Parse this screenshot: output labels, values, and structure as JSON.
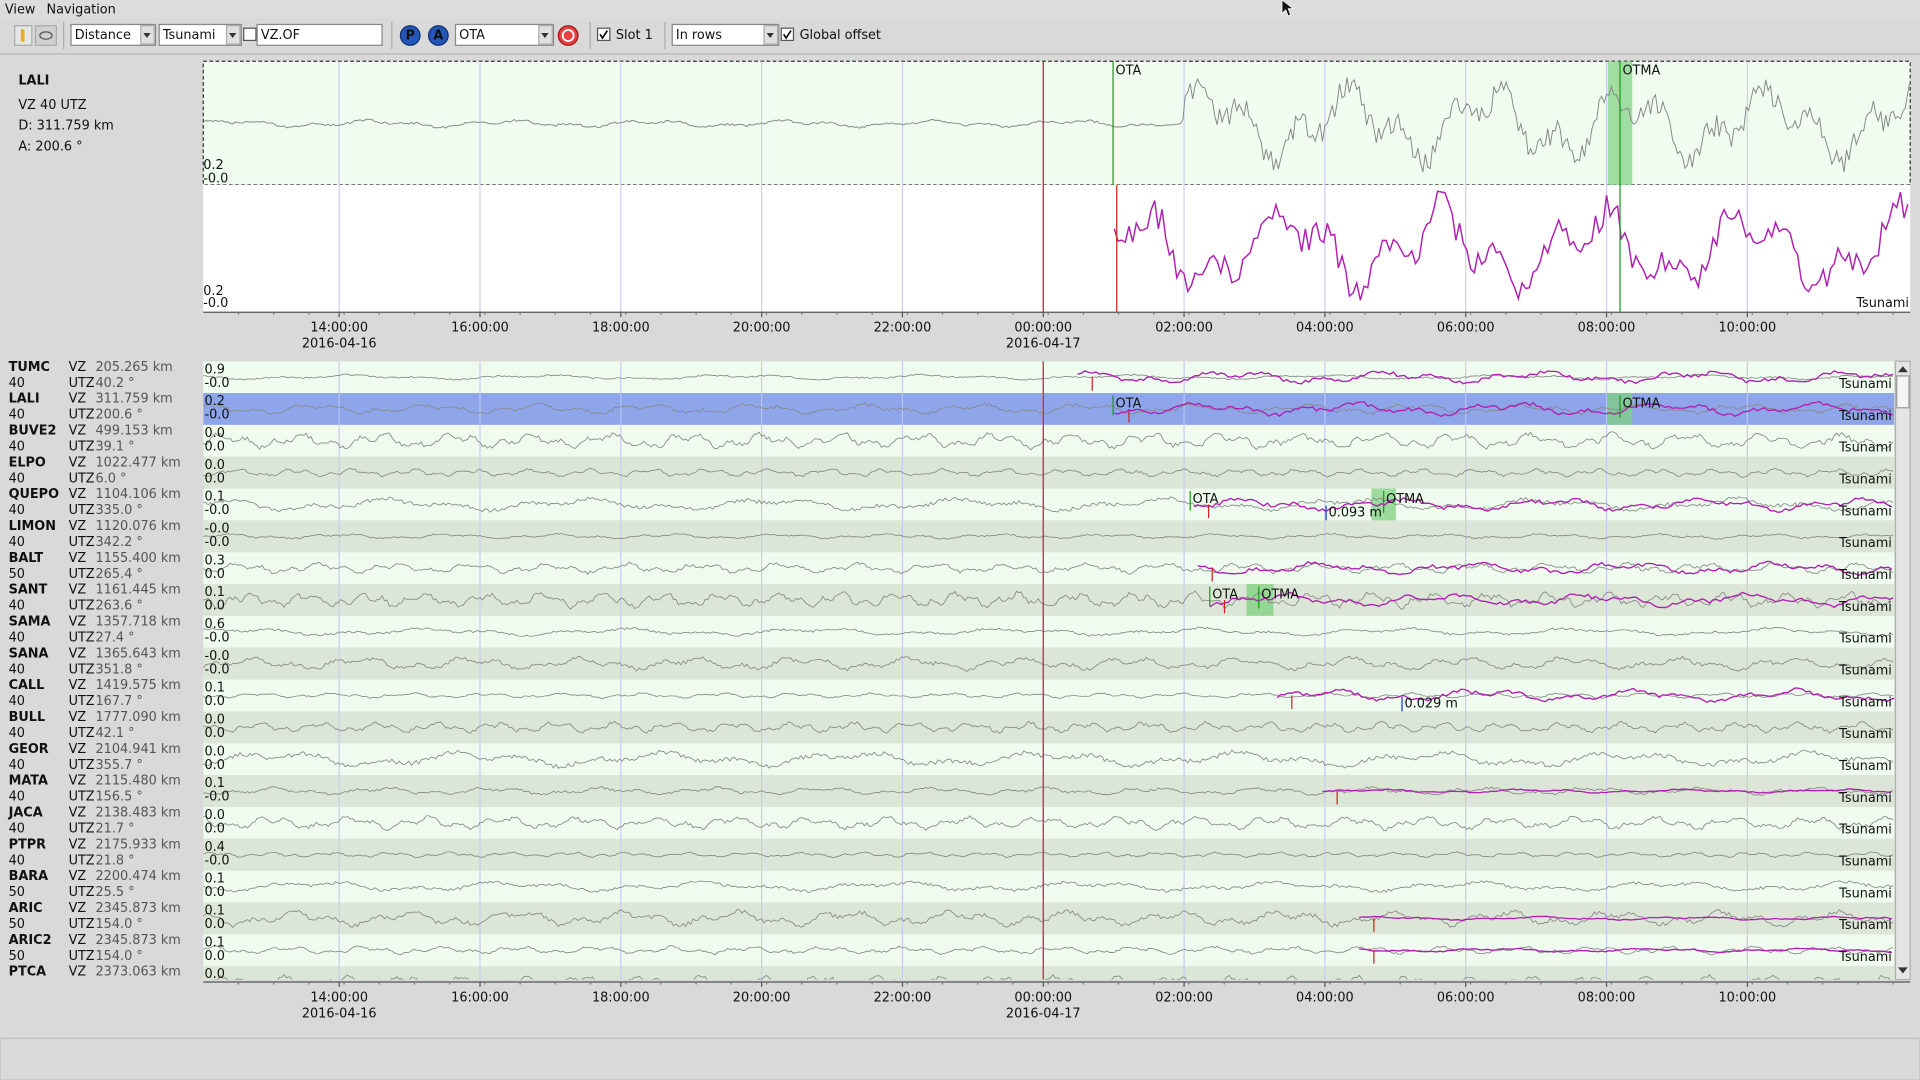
{
  "menu": [
    "View",
    "Navigation"
  ],
  "toolbar": {
    "sort": "Distance",
    "filter": "Tsunami",
    "stream": "VZ.OF",
    "pick_buttons": [
      "P",
      "A"
    ],
    "phase": "OTA",
    "slot": "Slot 1",
    "layout": "In rows",
    "offset": "Global offset"
  },
  "detail": {
    "station": "LALI",
    "stream": "VZ 40 UTZ",
    "distance": "D: 311.759 km",
    "azimuth": "A: 200.6 °",
    "raw_amp": [
      "0.2",
      "-0.0"
    ],
    "filtered_amp": [
      "0.2",
      "-0.0"
    ],
    "picks": [
      "OTA",
      "OTMA"
    ],
    "filter": "Tsunami"
  },
  "time_axis": {
    "ticks": [
      "14:00:00",
      "16:00:00",
      "18:00:00",
      "20:00:00",
      "22:00:00",
      "00:00:00",
      "02:00:00",
      "04:00:00",
      "06:00:00",
      "08:00:00",
      "10:00:00"
    ],
    "dates": [
      "2016-04-16",
      "2016-04-17"
    ]
  },
  "rows": [
    {
      "station": "TUMC",
      "channel": "VZ",
      "distance": "205.265 km",
      "location": "40",
      "network": "UTZ",
      "azimuth": "40.2 °",
      "amp": [
        "0.9",
        "-0.0"
      ],
      "filter": "Tsunami"
    },
    {
      "station": "LALI",
      "channel": "VZ",
      "distance": "311.759 km",
      "location": "40",
      "network": "UTZ",
      "azimuth": "200.6 °",
      "amp": [
        "0.2",
        "-0.0"
      ],
      "filter": "Tsunami",
      "picks": [
        "OTA",
        "OTMA"
      ]
    },
    {
      "station": "BUVE2",
      "channel": "VZ",
      "distance": "499.153 km",
      "location": "40",
      "network": "UTZ",
      "azimuth": "39.1 °",
      "amp": [
        "0.0",
        "0.0"
      ],
      "filter": "Tsunami"
    },
    {
      "station": "ELPO",
      "channel": "VZ",
      "distance": "1022.477 km",
      "location": "40",
      "network": "UTZ",
      "azimuth": "6.0 °",
      "amp": [
        "0.0",
        "0.0"
      ],
      "filter": "Tsunami"
    },
    {
      "station": "QUEPO",
      "channel": "VZ",
      "distance": "1104.106 km",
      "location": "40",
      "network": "UTZ",
      "azimuth": "335.0 °",
      "amp": [
        "0.1",
        "-0.0"
      ],
      "filter": "Tsunami",
      "picks": [
        "OTA",
        "OTMA"
      ],
      "amplitude": "0.093 m"
    },
    {
      "station": "LIMON",
      "channel": "VZ",
      "distance": "1120.076 km",
      "location": "40",
      "network": "UTZ",
      "azimuth": "342.2 °",
      "amp": [
        "-0.0",
        "-0.0"
      ],
      "filter": "Tsunami"
    },
    {
      "station": "BALT",
      "channel": "VZ",
      "distance": "1155.400 km",
      "location": "50",
      "network": "UTZ",
      "azimuth": "265.4 °",
      "amp": [
        "0.3",
        "0.0"
      ],
      "filter": "Tsunami"
    },
    {
      "station": "SANT",
      "channel": "VZ",
      "distance": "1161.445 km",
      "location": "40",
      "network": "UTZ",
      "azimuth": "263.6 °",
      "amp": [
        "0.1",
        "0.0"
      ],
      "filter": "Tsunami",
      "picks": [
        "OTA",
        "OTMA"
      ]
    },
    {
      "station": "SAMA",
      "channel": "VZ",
      "distance": "1357.718 km",
      "location": "40",
      "network": "UTZ",
      "azimuth": "27.4 °",
      "amp": [
        "0.6",
        "-0.0"
      ],
      "filter": "Tsunami"
    },
    {
      "station": "SANA",
      "channel": "VZ",
      "distance": "1365.643 km",
      "location": "40",
      "network": "UTZ",
      "azimuth": "351.8 °",
      "amp": [
        "-0.0",
        "-0.0"
      ],
      "filter": "Tsunami"
    },
    {
      "station": "CALL",
      "channel": "VZ",
      "distance": "1419.575 km",
      "location": "40",
      "network": "UTZ",
      "azimuth": "167.7 °",
      "amp": [
        "0.1",
        "0.0"
      ],
      "filter": "Tsunami",
      "amplitude": "0.029 m"
    },
    {
      "station": "BULL",
      "channel": "VZ",
      "distance": "1777.090 km",
      "location": "40",
      "network": "UTZ",
      "azimuth": "42.1 °",
      "amp": [
        "0.0",
        "0.0"
      ],
      "filter": "Tsunami"
    },
    {
      "station": "GEOR",
      "channel": "VZ",
      "distance": "2104.941 km",
      "location": "40",
      "network": "UTZ",
      "azimuth": "355.7 °",
      "amp": [
        "0.0",
        "0.0"
      ],
      "filter": "Tsunami"
    },
    {
      "station": "MATA",
      "channel": "VZ",
      "distance": "2115.480 km",
      "location": "40",
      "network": "UTZ",
      "azimuth": "156.5 °",
      "amp": [
        "0.1",
        "-0.0"
      ],
      "filter": "Tsunami"
    },
    {
      "station": "JACA",
      "channel": "VZ",
      "distance": "2138.483 km",
      "location": "40",
      "network": "UTZ",
      "azimuth": "21.7 °",
      "amp": [
        "0.0",
        "0.0"
      ],
      "filter": "Tsunami"
    },
    {
      "station": "PTPR",
      "channel": "VZ",
      "distance": "2175.933 km",
      "location": "40",
      "network": "UTZ",
      "azimuth": "21.8 °",
      "amp": [
        "0.4",
        "-0.0"
      ],
      "filter": "Tsunami"
    },
    {
      "station": "BARA",
      "channel": "VZ",
      "distance": "2200.474 km",
      "location": "50",
      "network": "UTZ",
      "azimuth": "25.5 °",
      "amp": [
        "0.1",
        "0.0"
      ],
      "filter": "Tsunami"
    },
    {
      "station": "ARIC",
      "channel": "VZ",
      "distance": "2345.873 km",
      "location": "50",
      "network": "UTZ",
      "azimuth": "154.0 °",
      "amp": [
        "0.1",
        "0.0"
      ],
      "filter": "Tsunami"
    },
    {
      "station": "ARIC2",
      "channel": "VZ",
      "distance": "2345.873 km",
      "location": "50",
      "network": "UTZ",
      "azimuth": "154.0 °",
      "amp": [
        "0.1",
        "0.0"
      ],
      "filter": "Tsunami"
    },
    {
      "station": "PTCA",
      "channel": "VZ",
      "distance": "2373.063 km",
      "amp": [
        "0.0"
      ]
    }
  ]
}
